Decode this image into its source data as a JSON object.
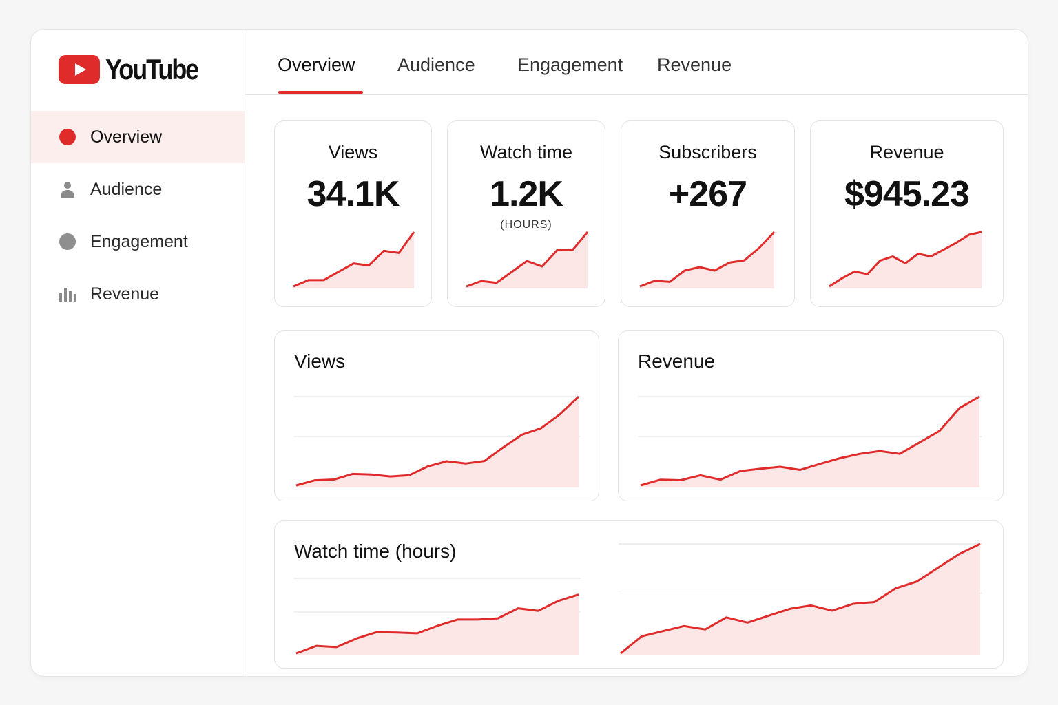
{
  "app": {
    "brand": "YouTube",
    "accent_color": "#e02b2b",
    "logo_icon": "youtube-play-icon"
  },
  "sidebar": {
    "items": [
      {
        "label": "Overview",
        "icon": "red-dot-icon",
        "active": true
      },
      {
        "label": "Audience",
        "icon": "person-icon",
        "active": false
      },
      {
        "label": "Engagement",
        "icon": "gray-dot-icon",
        "active": false
      },
      {
        "label": "Revenue",
        "icon": "bar-chart-icon",
        "active": false
      }
    ]
  },
  "tabs": [
    {
      "label": "Overview",
      "active": true
    },
    {
      "label": "Audience",
      "active": false
    },
    {
      "label": "Engagement",
      "active": false
    },
    {
      "label": "Revenue",
      "active": false
    }
  ],
  "stats": [
    {
      "title": "Views",
      "value": "34.1K",
      "sub": ""
    },
    {
      "title": "Watch time",
      "value": "1.2K",
      "sub": "(HOURS)"
    },
    {
      "title": "Subscribers",
      "value": "+267",
      "sub": ""
    },
    {
      "title": "Revenue",
      "value": "$945.23",
      "sub": ""
    }
  ],
  "charts": {
    "views_title": "Views",
    "revenue_title": "Revenue",
    "watch_title": "Watch time (hours)"
  },
  "chart_data": [
    {
      "type": "area",
      "title": "Views sparkline",
      "values": [
        0,
        3,
        3,
        7,
        11,
        10,
        17,
        16,
        26
      ]
    },
    {
      "type": "area",
      "title": "Watch time sparkline",
      "values": [
        0,
        3,
        2,
        8,
        14,
        11,
        20,
        20,
        30
      ]
    },
    {
      "type": "area",
      "title": "Subscribers sparkline",
      "values": [
        0,
        5,
        4,
        14,
        17,
        14,
        21,
        23,
        34,
        48
      ]
    },
    {
      "type": "area",
      "title": "Revenue sparkline",
      "values": [
        0,
        6,
        11,
        9,
        19,
        22,
        17,
        24,
        22,
        27,
        32,
        38,
        40
      ]
    },
    {
      "type": "area",
      "title": "Views",
      "ylim": [
        0,
        30
      ],
      "values": [
        0,
        2,
        2.3,
        4.5,
        4.3,
        3.5,
        4,
        7.5,
        9.5,
        8.6,
        9.6,
        15,
        20,
        22.5,
        28,
        35
      ]
    },
    {
      "type": "area",
      "title": "Revenue",
      "ylim": [
        0,
        30
      ],
      "values": [
        0,
        2,
        1.8,
        3.5,
        2,
        5,
        5.8,
        6.5,
        5.4,
        7.5,
        9.5,
        11,
        12,
        11,
        15,
        19,
        27,
        31
      ]
    },
    {
      "type": "area",
      "title": "Watch time (hours)",
      "ylim": [
        0,
        30
      ],
      "values": [
        0,
        3,
        2.5,
        6,
        8.5,
        8.3,
        8,
        11,
        13.5,
        13.5,
        14,
        18,
        17,
        21,
        23.5
      ]
    },
    {
      "type": "area",
      "title": "Watch time (hours) comparison",
      "ylim": [
        0,
        30
      ],
      "values": [
        0,
        5,
        6.5,
        8,
        7,
        10.5,
        9,
        11,
        13,
        14,
        12.5,
        14.5,
        15,
        19,
        21,
        25,
        29,
        32
      ]
    }
  ]
}
